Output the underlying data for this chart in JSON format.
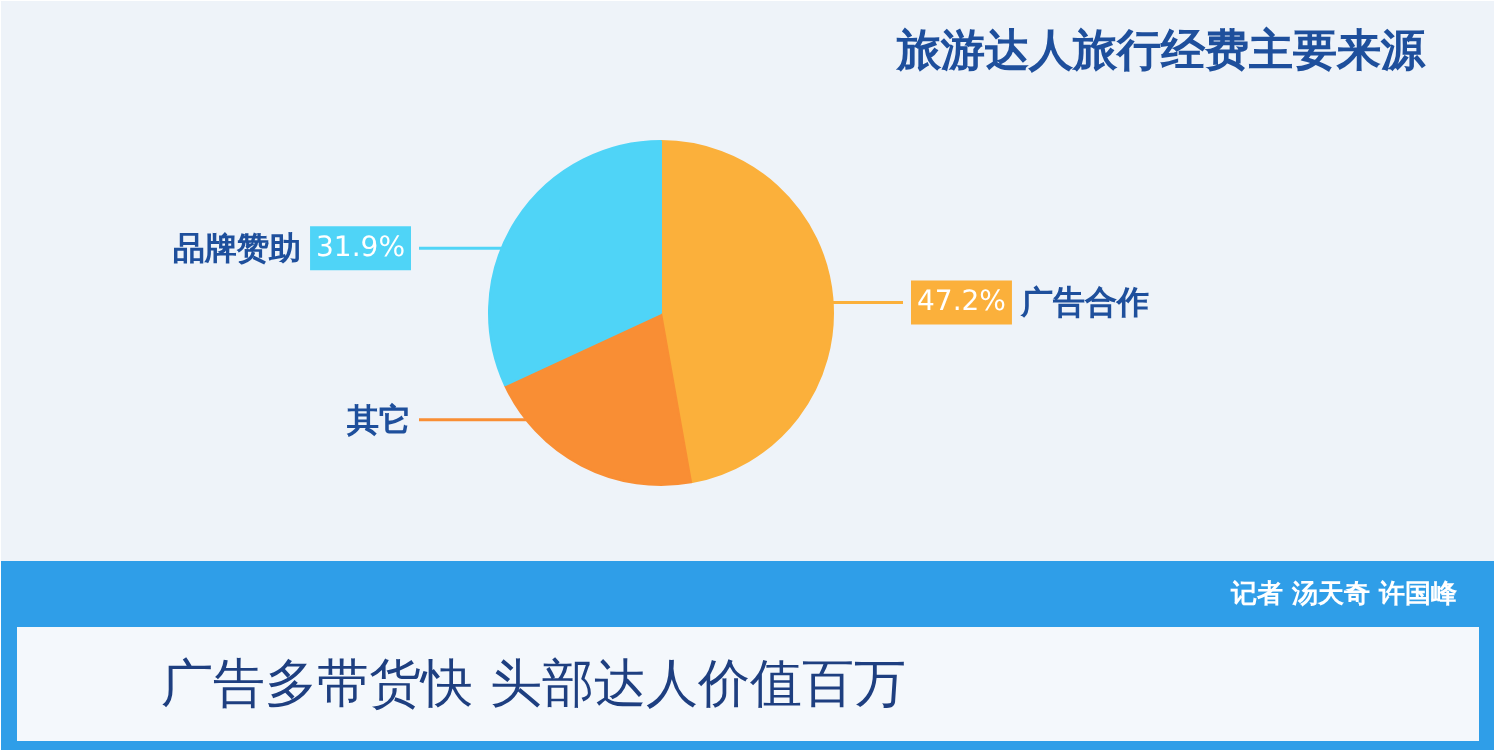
{
  "chart_data": {
    "type": "pie",
    "title": "旅游达人旅行经费主要来源",
    "categories": [
      "广告合作",
      "其它",
      "品牌赞助"
    ],
    "values": [
      47.2,
      20.9,
      31.9
    ],
    "colors": [
      "#fbb03b",
      "#f98e34",
      "#4fd4f7"
    ],
    "value_labels": [
      "47.2%",
      null,
      "31.9%"
    ],
    "annotations": [
      "记者  汤天奇  许国峰",
      "广告多带货快  头部达人价值百万"
    ]
  }
}
